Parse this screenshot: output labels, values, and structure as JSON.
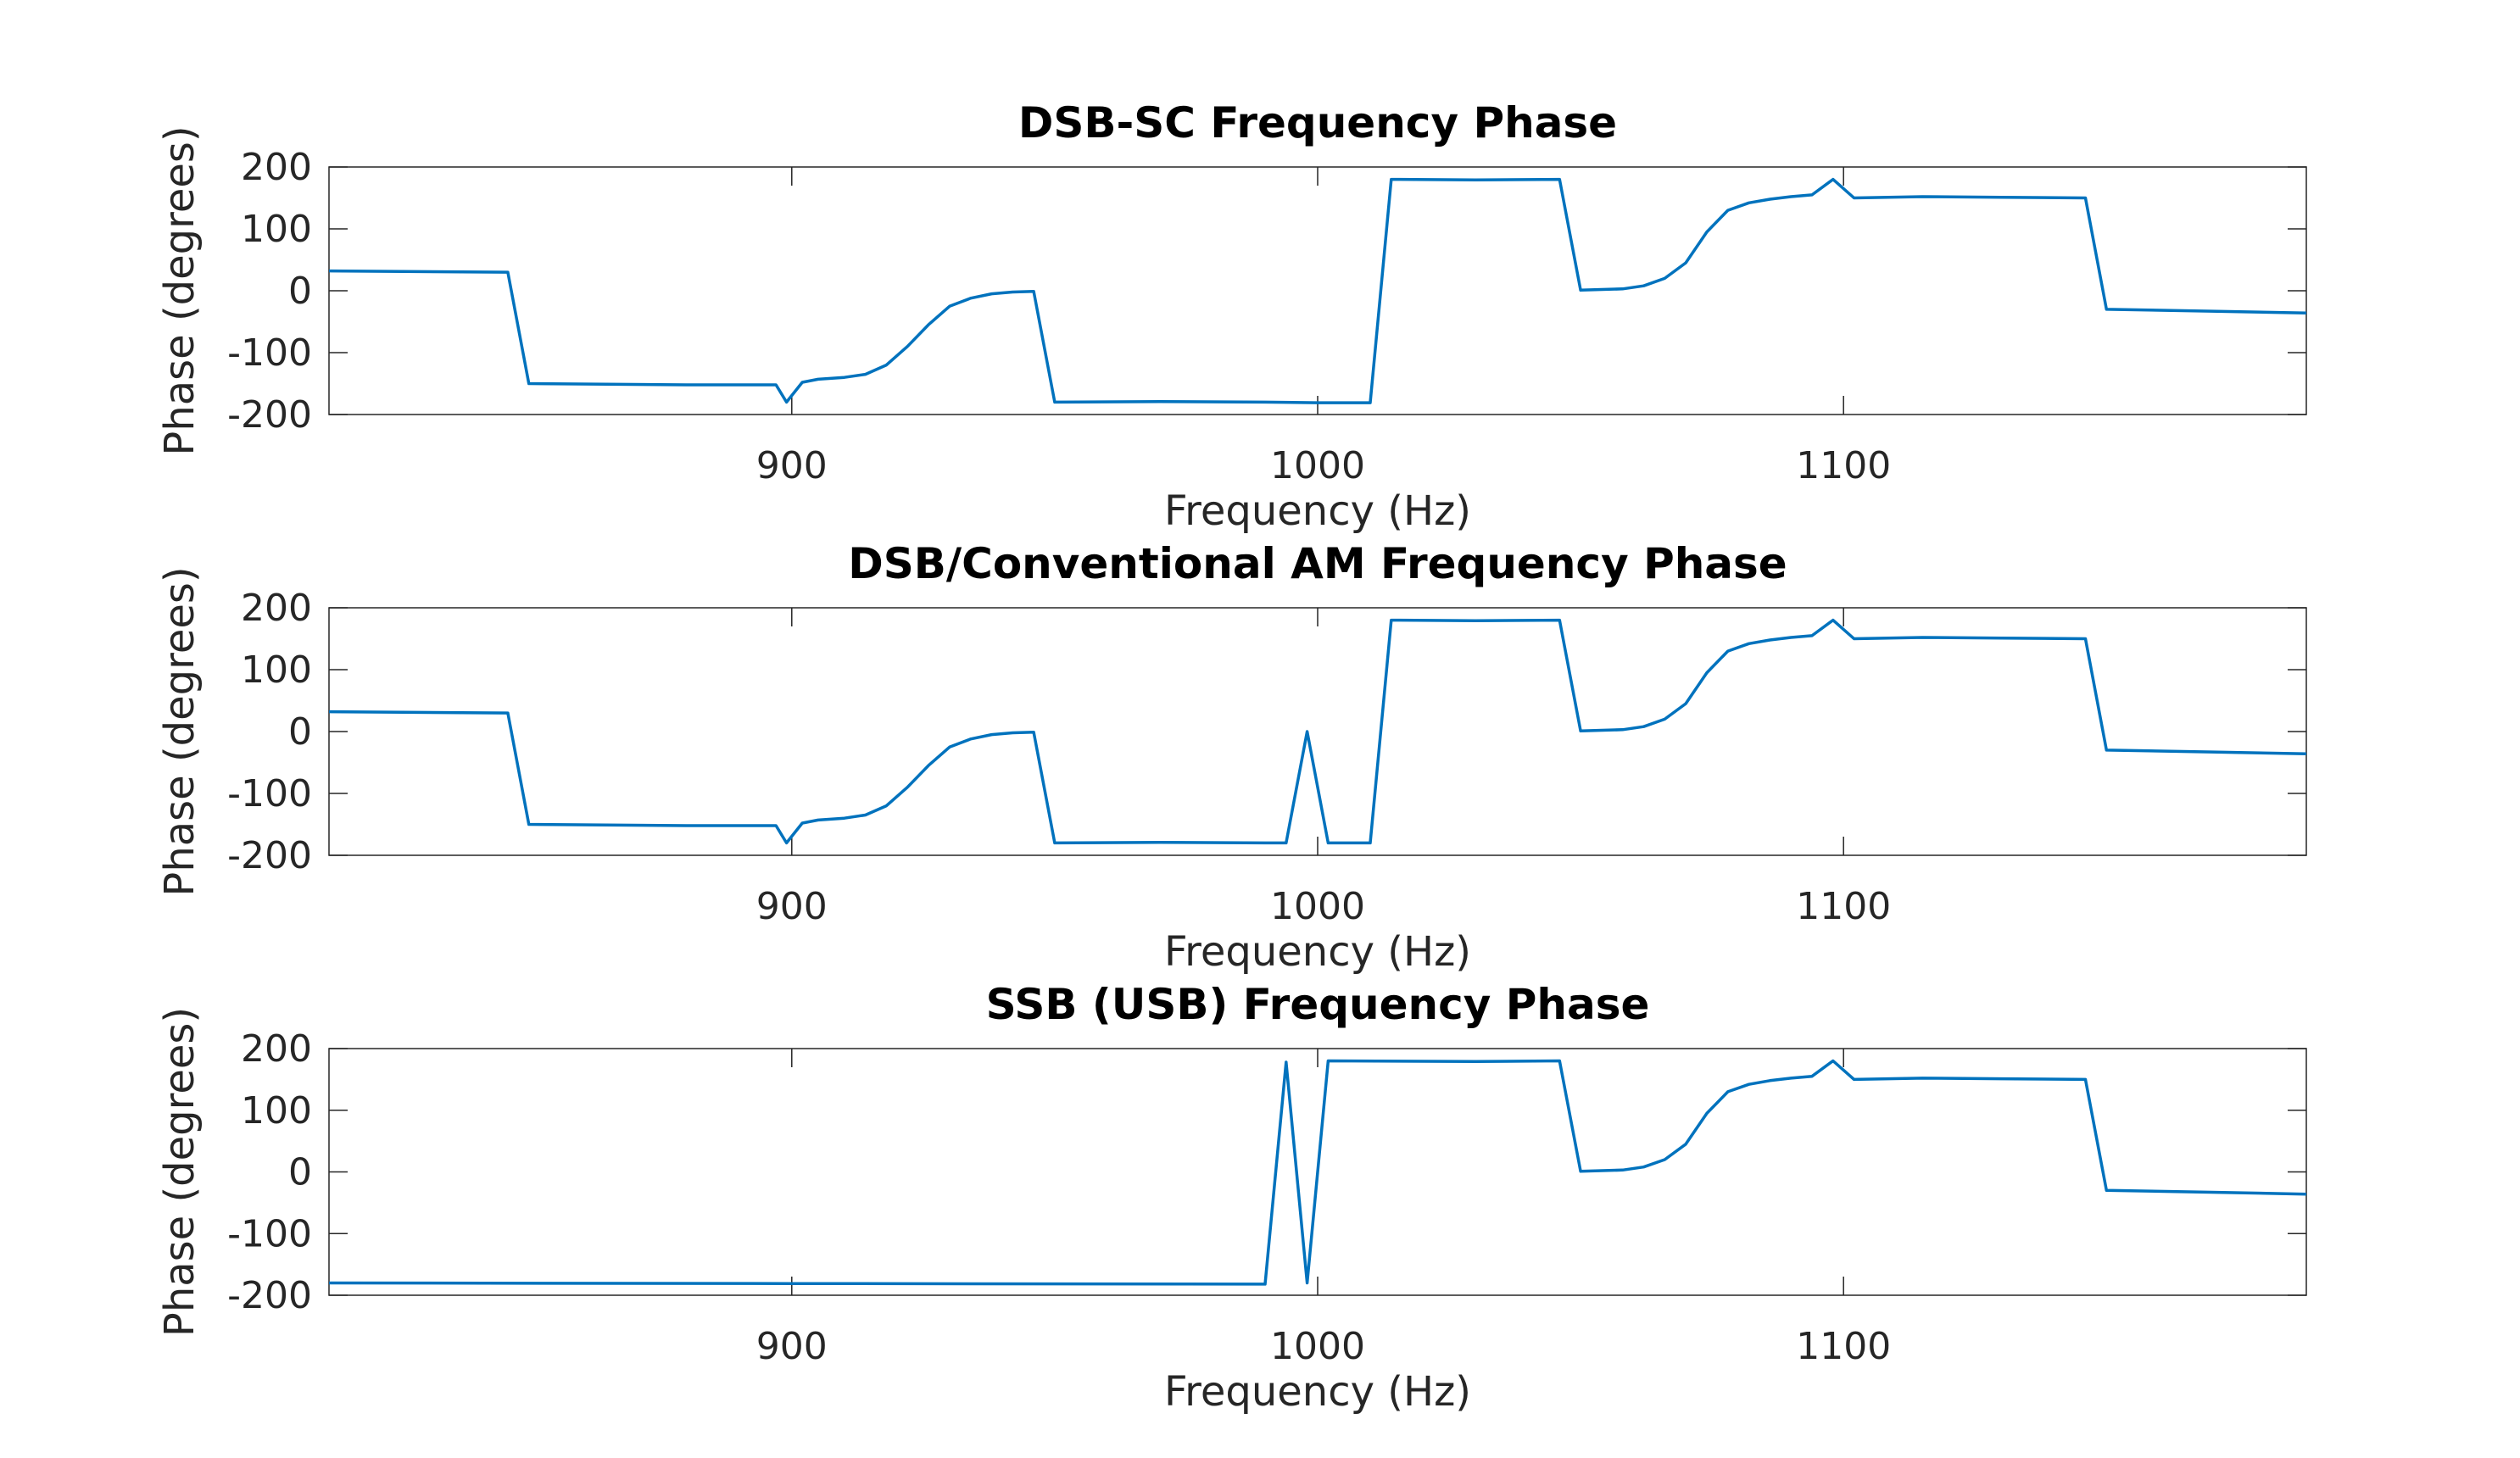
{
  "chart_data": [
    {
      "type": "line",
      "title": "DSB-SC Frequency Phase",
      "xlabel": "Frequency (Hz)",
      "ylabel": "Phase (degrees)",
      "xlim": [
        812,
        1188
      ],
      "ylim": [
        -200,
        200
      ],
      "xticks": [
        900,
        1000,
        1100
      ],
      "yticks": [
        -200,
        -100,
        0,
        100,
        200
      ],
      "xtick_labels": [
        "900",
        "1000",
        "1100"
      ],
      "ytick_labels": [
        "-200",
        "-100",
        "0",
        "100",
        "200"
      ],
      "grid": false,
      "color": "#0072BD",
      "series": [
        {
          "x": [
            812,
            846,
            850,
            880,
            897,
            899,
            902,
            905,
            910,
            914,
            918,
            922,
            926,
            930,
            934,
            938,
            942,
            946,
            950,
            970,
            990,
            1000,
            1010,
            1014,
            1030,
            1046,
            1050,
            1058,
            1062,
            1066,
            1070,
            1074,
            1078,
            1082,
            1086,
            1090,
            1094,
            1098,
            1102,
            1115,
            1130,
            1146,
            1150,
            1170,
            1188
          ],
          "y": [
            32,
            30,
            -150,
            -152,
            -152,
            -180,
            -148,
            -143,
            -140,
            -135,
            -120,
            -90,
            -55,
            -25,
            -12,
            -5,
            -2,
            -1,
            -180,
            -179,
            -180,
            -181,
            -181,
            180,
            179,
            180,
            1,
            3,
            8,
            20,
            45,
            95,
            130,
            142,
            148,
            152,
            155,
            180,
            150,
            152,
            151,
            150,
            -30,
            -33,
            -36
          ]
        }
      ]
    },
    {
      "type": "line",
      "title": "DSB/Conventional AM Frequency Phase",
      "xlabel": "Frequency (Hz)",
      "ylabel": "Phase (degrees)",
      "xlim": [
        812,
        1188
      ],
      "ylim": [
        -200,
        200
      ],
      "xticks": [
        900,
        1000,
        1100
      ],
      "yticks": [
        -200,
        -100,
        0,
        100,
        200
      ],
      "xtick_labels": [
        "900",
        "1000",
        "1100"
      ],
      "ytick_labels": [
        "-200",
        "-100",
        "0",
        "100",
        "200"
      ],
      "grid": false,
      "color": "#0072BD",
      "series": [
        {
          "x": [
            812,
            846,
            850,
            880,
            897,
            899,
            902,
            905,
            910,
            914,
            918,
            922,
            926,
            930,
            934,
            938,
            942,
            946,
            950,
            970,
            990,
            994,
            998,
            1002,
            1010,
            1014,
            1030,
            1046,
            1050,
            1058,
            1062,
            1066,
            1070,
            1074,
            1078,
            1082,
            1086,
            1090,
            1094,
            1098,
            1102,
            1115,
            1130,
            1146,
            1150,
            1170,
            1188
          ],
          "y": [
            32,
            30,
            -150,
            -152,
            -152,
            -180,
            -148,
            -143,
            -140,
            -135,
            -120,
            -90,
            -55,
            -25,
            -12,
            -5,
            -2,
            -1,
            -180,
            -179,
            -180,
            -180,
            0,
            -180,
            -180,
            180,
            179,
            180,
            1,
            3,
            8,
            20,
            45,
            95,
            130,
            142,
            148,
            152,
            155,
            180,
            150,
            152,
            151,
            150,
            -30,
            -33,
            -36
          ]
        }
      ]
    },
    {
      "type": "line",
      "title": "SSB (USB) Frequency Phase",
      "xlabel": "Frequency (Hz)",
      "ylabel": "Phase (degrees)",
      "xlim": [
        812,
        1188
      ],
      "ylim": [
        -200,
        200
      ],
      "xticks": [
        900,
        1000,
        1100
      ],
      "yticks": [
        -200,
        -100,
        0,
        100,
        200
      ],
      "xtick_labels": [
        "900",
        "1000",
        "1100"
      ],
      "ytick_labels": [
        "-200",
        "-100",
        "0",
        "100",
        "200"
      ],
      "grid": false,
      "color": "#0072BD",
      "series": [
        {
          "x": [
            812,
            900,
            990,
            994,
            998,
            1002,
            1030,
            1046,
            1050,
            1058,
            1062,
            1066,
            1070,
            1074,
            1078,
            1082,
            1086,
            1090,
            1094,
            1098,
            1102,
            1115,
            1130,
            1146,
            1150,
            1170,
            1188
          ],
          "y": [
            -180,
            -181,
            -182,
            178,
            -180,
            180,
            179,
            180,
            1,
            3,
            8,
            20,
            45,
            95,
            130,
            142,
            148,
            152,
            155,
            180,
            150,
            152,
            151,
            150,
            -30,
            -33,
            -36
          ]
        }
      ]
    }
  ]
}
